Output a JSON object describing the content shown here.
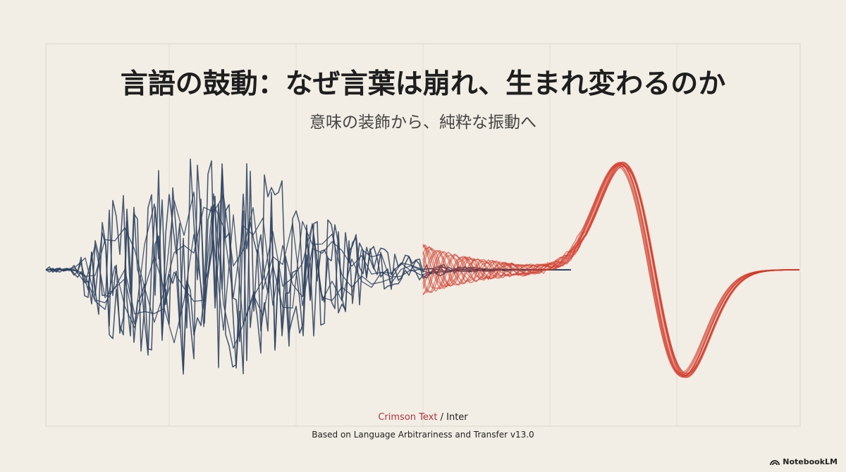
{
  "header": {
    "title": "言語の鼓動：なぜ言葉は崩れ、生まれ変わるのか",
    "subtitle": "意味の装飾から、純粋な振動へ"
  },
  "credits": {
    "font_primary": "Crimson Text",
    "separator": "/",
    "font_secondary": "Inter",
    "source": "Based on Language Arbitrariness and Transfer v13.0"
  },
  "brand": "NotebookLM"
}
